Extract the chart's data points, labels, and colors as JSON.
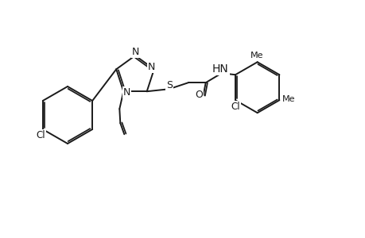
{
  "bg_color": "#ffffff",
  "line_color": "#1a1a1a",
  "line_width": 1.4,
  "font_size": 8.5,
  "fig_width": 4.6,
  "fig_height": 3.0,
  "dpi": 100,
  "xlim": [
    0,
    46
  ],
  "ylim": [
    0,
    30
  ]
}
